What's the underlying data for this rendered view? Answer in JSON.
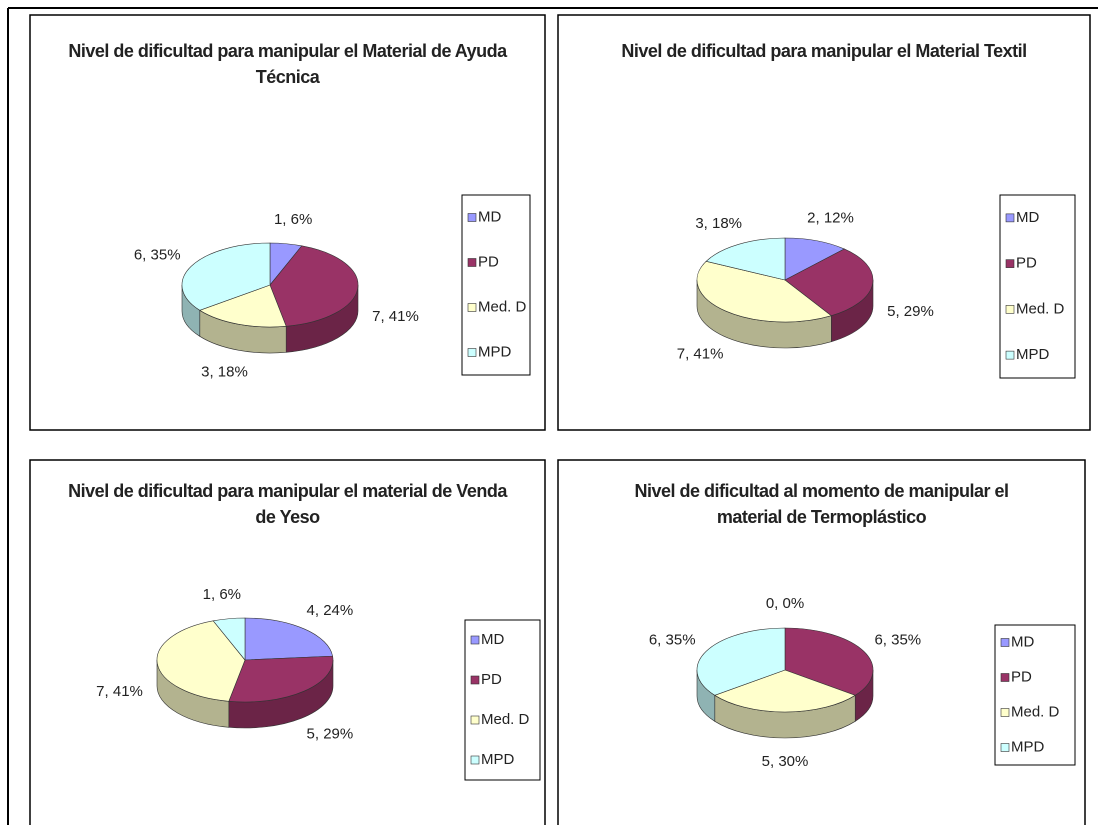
{
  "chart_data": [
    {
      "type": "pie",
      "title": "Nivel de dificultad para manipular el Material de Ayuda Técnica",
      "categories": [
        "MD",
        "PD",
        "Med. D",
        "MPD"
      ],
      "values": [
        1,
        7,
        3,
        6
      ],
      "value_labels": [
        "1, 6%",
        "7, 41%",
        "3, 18%",
        "6, 35%"
      ],
      "colors": [
        "#9999ff",
        "#993366",
        "#ffffcc",
        "#ccffff"
      ],
      "legend": "right"
    },
    {
      "type": "pie",
      "title": "Nivel de dificultad para manipular el Material Textil",
      "categories": [
        "MD",
        "PD",
        "Med. D",
        "MPD"
      ],
      "values": [
        2,
        5,
        7,
        3
      ],
      "value_labels": [
        "2, 12%",
        "5, 29%",
        "7, 41%",
        "3, 18%"
      ],
      "colors": [
        "#9999ff",
        "#993366",
        "#ffffcc",
        "#ccffff"
      ],
      "legend": "right"
    },
    {
      "type": "pie",
      "title": "Nivel de dificultad para manipular el material de Venda de Yeso",
      "categories": [
        "MD",
        "PD",
        "Med. D",
        "MPD"
      ],
      "values": [
        4,
        5,
        7,
        1
      ],
      "value_labels": [
        "4, 24%",
        "5, 29%",
        "7, 41%",
        "1, 6%"
      ],
      "colors": [
        "#9999ff",
        "#993366",
        "#ffffcc",
        "#ccffff"
      ],
      "legend": "right"
    },
    {
      "type": "pie",
      "title": "Nivel de dificultad al momento de manipular el material de Termoplástico",
      "categories": [
        "MD",
        "PD",
        "Med. D",
        "MPD"
      ],
      "values": [
        0,
        6,
        5,
        6
      ],
      "value_labels": [
        "0, 0%",
        "6, 35%",
        "5, 30%",
        "6, 35%"
      ],
      "colors": [
        "#9999ff",
        "#993366",
        "#ffffcc",
        "#ccffff"
      ],
      "legend": "right"
    }
  ]
}
